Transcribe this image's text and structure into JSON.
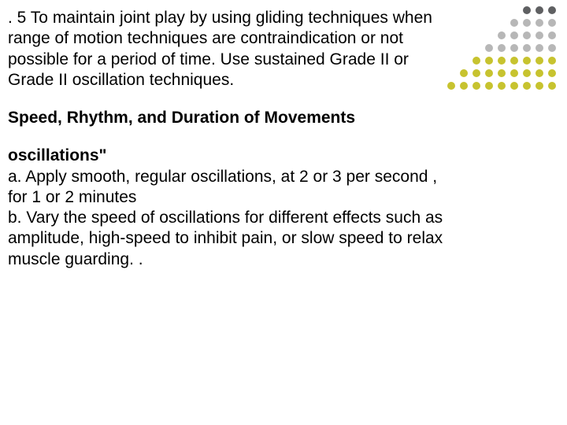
{
  "para1": ". 5 To maintain joint play by using gliding techniques when range of motion techniques are contraindication  or not possible for a  period  of time. Use sustained Grade II or Grade II oscillation techniques.",
  "heading": "Speed, Rhythm, and Duration of Movements",
  "subhead": "oscillations\"",
  "item_a": "a. Apply smooth, regular oscillations, at 2 or 3 per second , for 1 or 2 minutes",
  "item_b": "b. Vary the speed of oscillations for different effects such as amplitude, high-speed to inhibit pain, or slow speed to relax muscle guarding. .",
  "decor": {
    "rows": [
      {
        "count": 3,
        "color": "#5f6062"
      },
      {
        "count": 4,
        "color": "#b7b7b7"
      },
      {
        "count": 5,
        "color": "#b7b7b7"
      },
      {
        "count": 6,
        "color": "#b7b7b7"
      },
      {
        "count": 7,
        "color": "#c7c32f"
      },
      {
        "count": 8,
        "color": "#c7c32f"
      },
      {
        "count": 9,
        "color": "#c7c32f"
      }
    ],
    "dot_size": 10,
    "gap": 6
  }
}
